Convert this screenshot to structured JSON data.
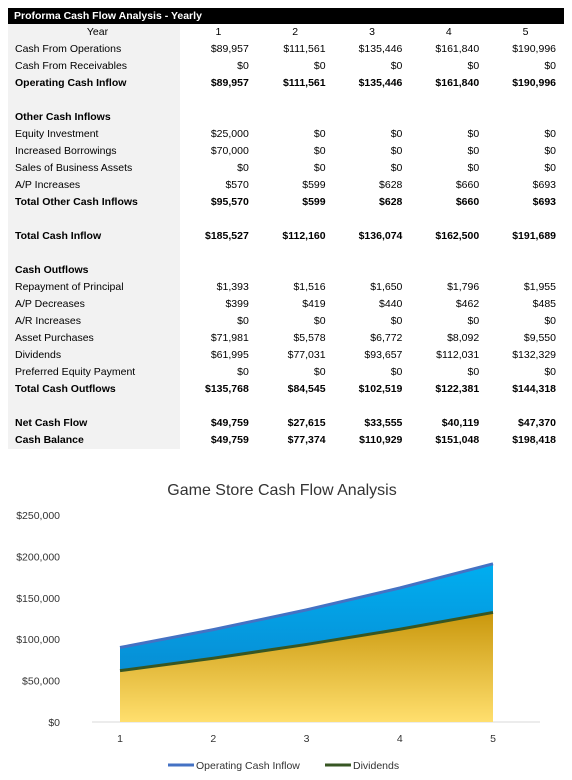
{
  "table": {
    "title": "Proforma Cash Flow Analysis - Yearly",
    "header": {
      "label": "Year",
      "years": [
        "1",
        "2",
        "3",
        "4",
        "5"
      ]
    },
    "rows": [
      {
        "label": "Cash From Operations",
        "values": [
          "$89,957",
          "$111,561",
          "$135,446",
          "$161,840",
          "$190,996"
        ],
        "style": "normal"
      },
      {
        "label": "Cash From Receivables",
        "values": [
          "$0",
          "$0",
          "$0",
          "$0",
          "$0"
        ],
        "style": "normal"
      },
      {
        "label": "Operating Cash Inflow",
        "values": [
          "$89,957",
          "$111,561",
          "$135,446",
          "$161,840",
          "$190,996"
        ],
        "style": "bold"
      },
      {
        "label": "",
        "values": [
          "",
          "",
          "",
          "",
          ""
        ],
        "style": "blank"
      },
      {
        "label": "Other Cash Inflows",
        "values": [
          "",
          "",
          "",
          "",
          ""
        ],
        "style": "section"
      },
      {
        "label": "Equity Investment",
        "values": [
          "$25,000",
          "$0",
          "$0",
          "$0",
          "$0"
        ],
        "style": "normal"
      },
      {
        "label": "Increased Borrowings",
        "values": [
          "$70,000",
          "$0",
          "$0",
          "$0",
          "$0"
        ],
        "style": "normal"
      },
      {
        "label": "Sales of Business Assets",
        "values": [
          "$0",
          "$0",
          "$0",
          "$0",
          "$0"
        ],
        "style": "normal"
      },
      {
        "label": "A/P Increases",
        "values": [
          "$570",
          "$599",
          "$628",
          "$660",
          "$693"
        ],
        "style": "normal"
      },
      {
        "label": "Total Other Cash Inflows",
        "values": [
          "$95,570",
          "$599",
          "$628",
          "$660",
          "$693"
        ],
        "style": "bold"
      },
      {
        "label": "",
        "values": [
          "",
          "",
          "",
          "",
          ""
        ],
        "style": "blank"
      },
      {
        "label": "Total Cash Inflow",
        "values": [
          "$185,527",
          "$112,160",
          "$136,074",
          "$162,500",
          "$191,689"
        ],
        "style": "bold"
      },
      {
        "label": "",
        "values": [
          "",
          "",
          "",
          "",
          ""
        ],
        "style": "blank"
      },
      {
        "label": "Cash Outflows",
        "values": [
          "",
          "",
          "",
          "",
          ""
        ],
        "style": "section"
      },
      {
        "label": "Repayment of Principal",
        "values": [
          "$1,393",
          "$1,516",
          "$1,650",
          "$1,796",
          "$1,955"
        ],
        "style": "normal"
      },
      {
        "label": "A/P Decreases",
        "values": [
          "$399",
          "$419",
          "$440",
          "$462",
          "$485"
        ],
        "style": "normal"
      },
      {
        "label": "A/R Increases",
        "values": [
          "$0",
          "$0",
          "$0",
          "$0",
          "$0"
        ],
        "style": "normal"
      },
      {
        "label": "Asset Purchases",
        "values": [
          "$71,981",
          "$5,578",
          "$6,772",
          "$8,092",
          "$9,550"
        ],
        "style": "normal"
      },
      {
        "label": "Dividends",
        "values": [
          "$61,995",
          "$77,031",
          "$93,657",
          "$112,031",
          "$132,329"
        ],
        "style": "normal"
      },
      {
        "label": "Preferred Equity Payment",
        "values": [
          "$0",
          "$0",
          "$0",
          "$0",
          "$0"
        ],
        "style": "normal"
      },
      {
        "label": "Total Cash Outflows",
        "values": [
          "$135,768",
          "$84,545",
          "$102,519",
          "$122,381",
          "$144,318"
        ],
        "style": "bold"
      },
      {
        "label": "",
        "values": [
          "",
          "",
          "",
          "",
          ""
        ],
        "style": "blank"
      },
      {
        "label": "Net Cash Flow",
        "values": [
          "$49,759",
          "$27,615",
          "$33,555",
          "$40,119",
          "$47,370"
        ],
        "style": "bold"
      },
      {
        "label": "Cash Balance",
        "values": [
          "$49,759",
          "$77,374",
          "$110,929",
          "$151,048",
          "$198,418"
        ],
        "style": "bold"
      }
    ]
  },
  "chart_data": {
    "type": "area",
    "title": "Game Store Cash Flow Analysis",
    "x": [
      1,
      2,
      3,
      4,
      5
    ],
    "x_tick_labels": [
      "1",
      "2",
      "3",
      "4",
      "5"
    ],
    "y_tick_labels": [
      "$0",
      "$50,000",
      "$100,000",
      "$150,000",
      "$200,000",
      "$250,000"
    ],
    "ylim": [
      0,
      250000
    ],
    "grid": false,
    "legend_position": "bottom",
    "series": [
      {
        "name": "Operating Cash Inflow",
        "values": [
          89957,
          111561,
          135446,
          161840,
          190996
        ],
        "line_color": "#4472c4",
        "fill_color": "#00a2e0"
      },
      {
        "name": "Dividends",
        "values": [
          61995,
          77031,
          93657,
          112031,
          132329
        ],
        "line_color": "#375623",
        "fill_color": "#d4a017"
      }
    ]
  }
}
